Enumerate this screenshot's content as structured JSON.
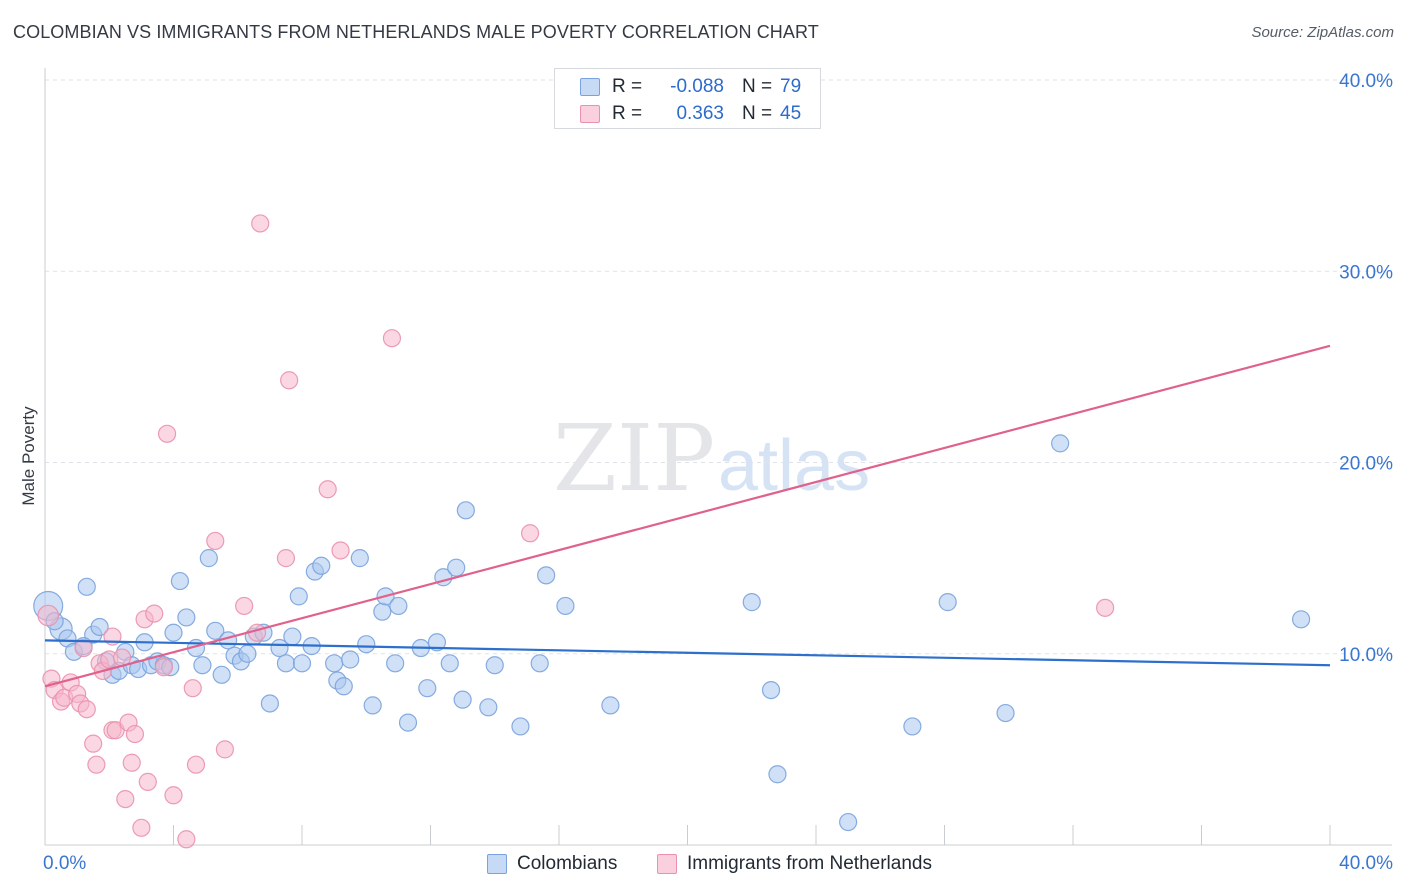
{
  "title": "COLOMBIAN VS IMMIGRANTS FROM NETHERLANDS MALE POVERTY CORRELATION CHART",
  "source": "Source: ZipAtlas.com",
  "watermark": {
    "zip": "ZIP",
    "atlas": "atlas"
  },
  "legend": {
    "rows": [
      {
        "label": "R = ",
        "r": "-0.088",
        "n_label": "N = ",
        "n": "79",
        "color": "#a9c6ef"
      },
      {
        "label": "R = ",
        "r": "0.363",
        "n_label": "N = ",
        "n": "45",
        "color": "#f6b7cb"
      }
    ]
  },
  "bottom_legend": [
    {
      "name": "Colombians",
      "color": "#a9c6ef"
    },
    {
      "name": "Immigrants from Netherlands",
      "color": "#f6b7cb"
    }
  ],
  "chart_data": {
    "type": "scatter",
    "title": "COLOMBIAN VS IMMIGRANTS FROM NETHERLANDS MALE POVERTY CORRELATION CHART",
    "xlabel": "",
    "ylabel": "Male Poverty",
    "xlim": [
      0,
      40
    ],
    "ylim": [
      0,
      40
    ],
    "x_tick_labels": [
      "0.0%",
      "40.0%"
    ],
    "y_ticks": [
      10,
      20,
      30,
      40
    ],
    "y_tick_labels": [
      "10.0%",
      "20.0%",
      "30.0%",
      "40.0%"
    ],
    "grid": true,
    "series": [
      {
        "name": "Colombians",
        "color": "#a9c6ef",
        "stroke": "#7aa3dd",
        "line_color": "#2d6fcc",
        "trend": {
          "x": [
            0,
            40
          ],
          "y": [
            10.7,
            9.4
          ]
        },
        "points": [
          {
            "x": 0.1,
            "y": 12.5,
            "s": 1.7
          },
          {
            "x": 0.5,
            "y": 11.3,
            "s": 1.3
          },
          {
            "x": 0.3,
            "y": 11.7
          },
          {
            "x": 0.7,
            "y": 10.8
          },
          {
            "x": 0.9,
            "y": 10.1
          },
          {
            "x": 1.3,
            "y": 13.5
          },
          {
            "x": 1.5,
            "y": 11.0
          },
          {
            "x": 1.7,
            "y": 11.4
          },
          {
            "x": 1.9,
            "y": 9.6
          },
          {
            "x": 2.1,
            "y": 8.9
          },
          {
            "x": 2.3,
            "y": 9.1
          },
          {
            "x": 2.5,
            "y": 10.1
          },
          {
            "x": 2.7,
            "y": 9.4
          },
          {
            "x": 2.9,
            "y": 9.2
          },
          {
            "x": 3.1,
            "y": 10.6
          },
          {
            "x": 3.3,
            "y": 9.4
          },
          {
            "x": 3.5,
            "y": 9.6
          },
          {
            "x": 3.7,
            "y": 9.4
          },
          {
            "x": 3.9,
            "y": 9.3
          },
          {
            "x": 4.0,
            "y": 11.1
          },
          {
            "x": 4.2,
            "y": 13.8
          },
          {
            "x": 4.4,
            "y": 11.9
          },
          {
            "x": 4.7,
            "y": 10.3
          },
          {
            "x": 4.9,
            "y": 9.4
          },
          {
            "x": 5.1,
            "y": 15.0
          },
          {
            "x": 5.3,
            "y": 11.2
          },
          {
            "x": 5.5,
            "y": 8.9
          },
          {
            "x": 5.7,
            "y": 10.7
          },
          {
            "x": 5.9,
            "y": 9.9
          },
          {
            "x": 6.1,
            "y": 9.6
          },
          {
            "x": 6.3,
            "y": 10.0
          },
          {
            "x": 6.5,
            "y": 10.9
          },
          {
            "x": 6.8,
            "y": 11.1
          },
          {
            "x": 7.0,
            "y": 7.4
          },
          {
            "x": 7.3,
            "y": 10.3
          },
          {
            "x": 7.5,
            "y": 9.5
          },
          {
            "x": 7.7,
            "y": 10.9
          },
          {
            "x": 7.9,
            "y": 13.0
          },
          {
            "x": 8.0,
            "y": 9.5
          },
          {
            "x": 8.3,
            "y": 10.4
          },
          {
            "x": 8.4,
            "y": 14.3
          },
          {
            "x": 8.6,
            "y": 14.6
          },
          {
            "x": 9.0,
            "y": 9.5
          },
          {
            "x": 9.1,
            "y": 8.6
          },
          {
            "x": 9.3,
            "y": 8.3
          },
          {
            "x": 9.5,
            "y": 9.7
          },
          {
            "x": 9.8,
            "y": 15.0
          },
          {
            "x": 10.0,
            "y": 10.5
          },
          {
            "x": 10.2,
            "y": 7.3
          },
          {
            "x": 10.5,
            "y": 12.2
          },
          {
            "x": 10.6,
            "y": 13.0
          },
          {
            "x": 10.9,
            "y": 9.5
          },
          {
            "x": 11.0,
            "y": 12.5
          },
          {
            "x": 11.3,
            "y": 6.4
          },
          {
            "x": 11.7,
            "y": 10.3
          },
          {
            "x": 11.9,
            "y": 8.2
          },
          {
            "x": 12.2,
            "y": 10.6
          },
          {
            "x": 12.4,
            "y": 14.0
          },
          {
            "x": 12.6,
            "y": 9.5
          },
          {
            "x": 12.8,
            "y": 14.5
          },
          {
            "x": 13.0,
            "y": 7.6
          },
          {
            "x": 13.1,
            "y": 17.5
          },
          {
            "x": 13.8,
            "y": 7.2
          },
          {
            "x": 14.0,
            "y": 9.4
          },
          {
            "x": 14.8,
            "y": 6.2
          },
          {
            "x": 15.4,
            "y": 9.5
          },
          {
            "x": 15.6,
            "y": 14.1
          },
          {
            "x": 16.2,
            "y": 12.5
          },
          {
            "x": 17.6,
            "y": 7.3
          },
          {
            "x": 22.0,
            "y": 12.7
          },
          {
            "x": 22.6,
            "y": 8.1
          },
          {
            "x": 22.8,
            "y": 3.7
          },
          {
            "x": 25.0,
            "y": 1.2
          },
          {
            "x": 27.0,
            "y": 6.2
          },
          {
            "x": 28.1,
            "y": 12.7
          },
          {
            "x": 29.9,
            "y": 6.9
          },
          {
            "x": 31.6,
            "y": 21.0
          },
          {
            "x": 39.1,
            "y": 11.8
          },
          {
            "x": 1.2,
            "y": 10.4
          }
        ]
      },
      {
        "name": "Immigrants from Netherlands",
        "color": "#f6b7cb",
        "stroke": "#ea91ae",
        "line_color": "#e0628c",
        "trend": {
          "x": [
            0,
            40
          ],
          "y": [
            8.3,
            26.1
          ]
        },
        "points": [
          {
            "x": 0.1,
            "y": 12.0,
            "s": 1.2
          },
          {
            "x": 0.2,
            "y": 8.7
          },
          {
            "x": 0.3,
            "y": 8.1
          },
          {
            "x": 0.5,
            "y": 7.5
          },
          {
            "x": 0.6,
            "y": 7.7
          },
          {
            "x": 0.8,
            "y": 8.5
          },
          {
            "x": 1.0,
            "y": 7.9
          },
          {
            "x": 1.1,
            "y": 7.4
          },
          {
            "x": 1.2,
            "y": 10.3
          },
          {
            "x": 1.3,
            "y": 7.1
          },
          {
            "x": 1.5,
            "y": 5.3
          },
          {
            "x": 1.6,
            "y": 4.2
          },
          {
            "x": 1.7,
            "y": 9.5
          },
          {
            "x": 1.8,
            "y": 9.1
          },
          {
            "x": 2.0,
            "y": 9.7
          },
          {
            "x": 2.1,
            "y": 10.9
          },
          {
            "x": 2.1,
            "y": 6.0
          },
          {
            "x": 2.2,
            "y": 6.0
          },
          {
            "x": 2.4,
            "y": 9.8
          },
          {
            "x": 2.5,
            "y": 2.4
          },
          {
            "x": 2.6,
            "y": 6.4
          },
          {
            "x": 2.7,
            "y": 4.3
          },
          {
            "x": 2.8,
            "y": 5.8
          },
          {
            "x": 3.0,
            "y": 0.9
          },
          {
            "x": 3.1,
            "y": 11.8
          },
          {
            "x": 3.2,
            "y": 3.3
          },
          {
            "x": 3.4,
            "y": 12.1
          },
          {
            "x": 3.7,
            "y": 9.3
          },
          {
            "x": 3.8,
            "y": 21.5
          },
          {
            "x": 4.0,
            "y": 2.6
          },
          {
            "x": 4.4,
            "y": 0.3
          },
          {
            "x": 4.6,
            "y": 8.2
          },
          {
            "x": 4.7,
            "y": 4.2
          },
          {
            "x": 5.3,
            "y": 15.9
          },
          {
            "x": 5.6,
            "y": 5.0
          },
          {
            "x": 6.2,
            "y": 12.5
          },
          {
            "x": 6.6,
            "y": 11.1
          },
          {
            "x": 6.7,
            "y": 32.5
          },
          {
            "x": 7.5,
            "y": 15.0
          },
          {
            "x": 7.6,
            "y": 24.3
          },
          {
            "x": 8.8,
            "y": 18.6
          },
          {
            "x": 9.2,
            "y": 15.4
          },
          {
            "x": 10.8,
            "y": 26.5
          },
          {
            "x": 15.1,
            "y": 16.3
          },
          {
            "x": 33.0,
            "y": 12.4
          }
        ]
      }
    ]
  }
}
